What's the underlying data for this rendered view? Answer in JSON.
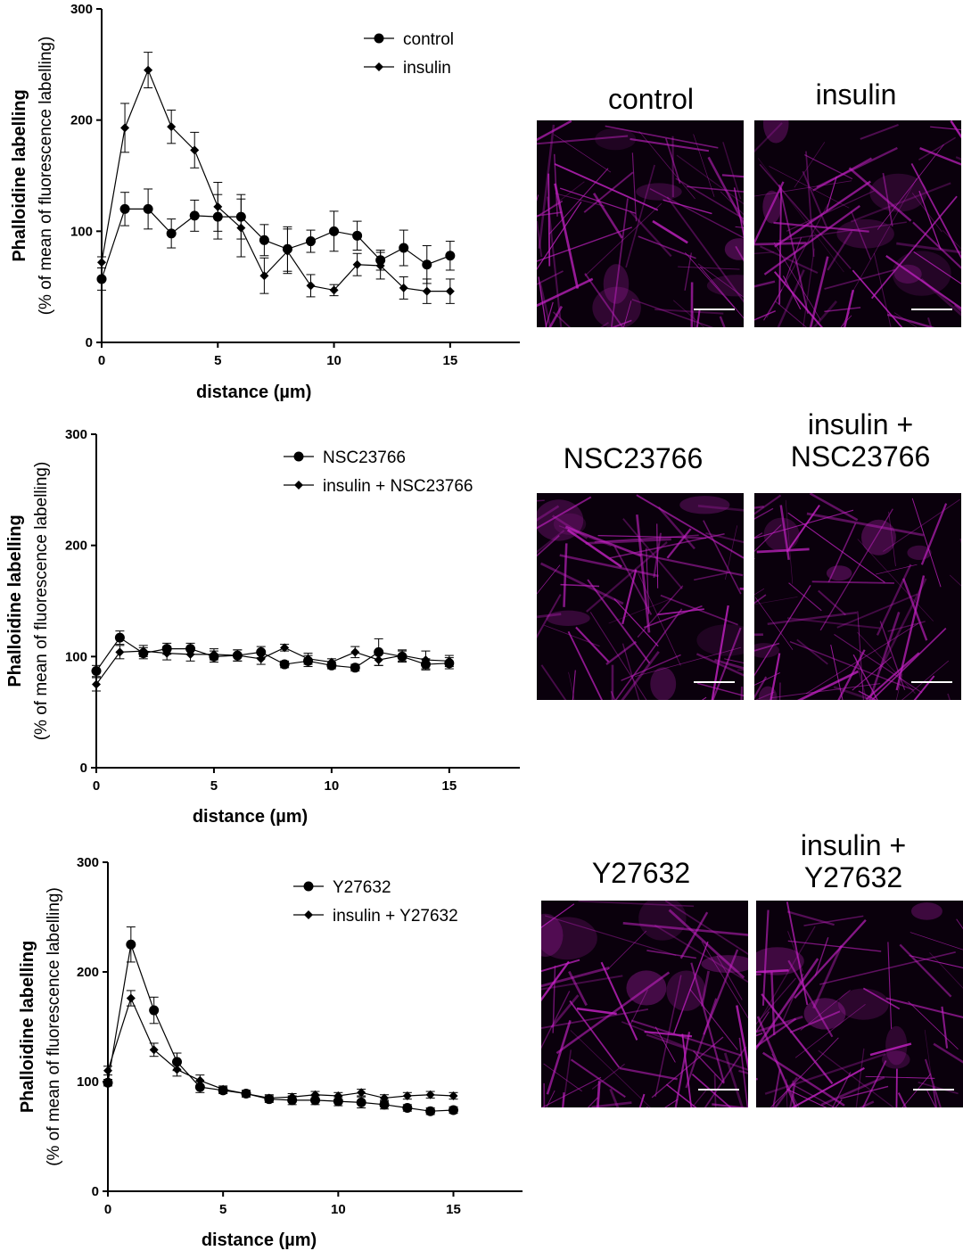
{
  "colors": {
    "line": "#000000",
    "stain": "#c822c8",
    "background": "#0a000c"
  },
  "panels": [
    {
      "label": "control",
      "label2": ""
    },
    {
      "label": "insulin",
      "label2": ""
    },
    {
      "label": "NSC23766",
      "label2": ""
    },
    {
      "label": "insulin +",
      "label2": "NSC23766"
    },
    {
      "label": "Y27632",
      "label2": ""
    },
    {
      "label": "insulin +",
      "label2": "Y27632"
    }
  ],
  "chart_data": [
    {
      "type": "line",
      "title": "",
      "ylabel": "Phalloidine labelling",
      "ylabel2": "(% of mean of fluorescence labelling)",
      "xlabel": "distance (µm)",
      "xlim": [
        0,
        18
      ],
      "ylim": [
        0,
        300
      ],
      "xticks": [
        0,
        5,
        10,
        15
      ],
      "yticks": [
        0,
        100,
        200,
        300
      ],
      "legend_position": "top-center",
      "x": [
        0,
        1,
        2,
        3,
        4,
        5,
        6,
        7,
        8,
        9,
        10,
        11,
        12,
        13,
        14,
        15
      ],
      "series": [
        {
          "name": "control",
          "marker": "circle",
          "values": [
            57,
            120,
            120,
            98,
            114,
            113,
            113,
            92,
            84,
            91,
            100,
            96,
            74,
            85,
            70,
            78
          ],
          "errors": [
            10,
            15,
            18,
            13,
            14,
            20,
            20,
            14,
            20,
            10,
            18,
            13,
            9,
            16,
            17,
            13
          ]
        },
        {
          "name": "insulin",
          "marker": "diamond",
          "values": [
            72,
            193,
            245,
            194,
            173,
            122,
            103,
            60,
            82,
            51,
            47,
            70,
            69,
            49,
            46,
            46
          ],
          "errors": [
            5,
            22,
            16,
            15,
            16,
            22,
            26,
            16,
            20,
            10,
            5,
            10,
            12,
            10,
            11,
            11
          ]
        }
      ]
    },
    {
      "type": "line",
      "title": "",
      "ylabel": "Phalloidine labelling",
      "ylabel2": "(% of mean of fluorescence labelling)",
      "xlabel": "distance (µm)",
      "xlim": [
        0,
        18
      ],
      "ylim": [
        0,
        300
      ],
      "xticks": [
        0,
        5,
        10,
        15
      ],
      "yticks": [
        0,
        100,
        200,
        300
      ],
      "legend_position": "top-center",
      "x": [
        0,
        1,
        2,
        3,
        4,
        5,
        6,
        7,
        8,
        9,
        10,
        11,
        12,
        13,
        14,
        15
      ],
      "series": [
        {
          "name": "NSC23766",
          "marker": "circle",
          "values": [
            87,
            117,
            103,
            107,
            107,
            100,
            101,
            104,
            93,
            96,
            92,
            90,
            104,
            100,
            93,
            94
          ],
          "errors": [
            5,
            6,
            5,
            5,
            5,
            5,
            5,
            5,
            3,
            5,
            3,
            3,
            12,
            5,
            5,
            5
          ]
        },
        {
          "name": "insulin + NSC23766",
          "marker": "diamond",
          "values": [
            75,
            104,
            105,
            103,
            102,
            102,
            101,
            98,
            108,
            98,
            95,
            104,
            97,
            101,
            97,
            96
          ],
          "errors": [
            6,
            6,
            5,
            6,
            6,
            5,
            5,
            5,
            3,
            5,
            3,
            5,
            5,
            5,
            8,
            5
          ]
        }
      ]
    },
    {
      "type": "line",
      "title": "",
      "ylabel": "Phalloidine labelling",
      "ylabel2": "(% of mean of fluorescence labelling)",
      "xlabel": "distance (µm)",
      "xlim": [
        0,
        18
      ],
      "ylim": [
        0,
        300
      ],
      "xticks": [
        0,
        5,
        10,
        15
      ],
      "yticks": [
        0,
        100,
        200,
        300
      ],
      "legend_position": "top-center",
      "x": [
        0,
        1,
        2,
        3,
        4,
        5,
        6,
        7,
        8,
        9,
        10,
        11,
        12,
        13,
        14,
        15
      ],
      "series": [
        {
          "name": "Y27632",
          "marker": "circle",
          "values": [
            99,
            225,
            165,
            118,
            95,
            92,
            89,
            84,
            83,
            83,
            82,
            81,
            79,
            76,
            73,
            74
          ],
          "errors": [
            3,
            16,
            12,
            8,
            5,
            3,
            3,
            3,
            4,
            4,
            4,
            5,
            4,
            3,
            3,
            3
          ]
        },
        {
          "name": "insulin + Y27632",
          "marker": "diamond",
          "values": [
            110,
            176,
            129,
            111,
            101,
            93,
            89,
            85,
            86,
            88,
            87,
            90,
            85,
            87,
            88,
            87
          ],
          "errors": [
            4,
            7,
            6,
            6,
            5,
            3,
            3,
            3,
            3,
            3,
            3,
            3,
            3,
            3,
            3,
            3
          ]
        }
      ]
    }
  ]
}
